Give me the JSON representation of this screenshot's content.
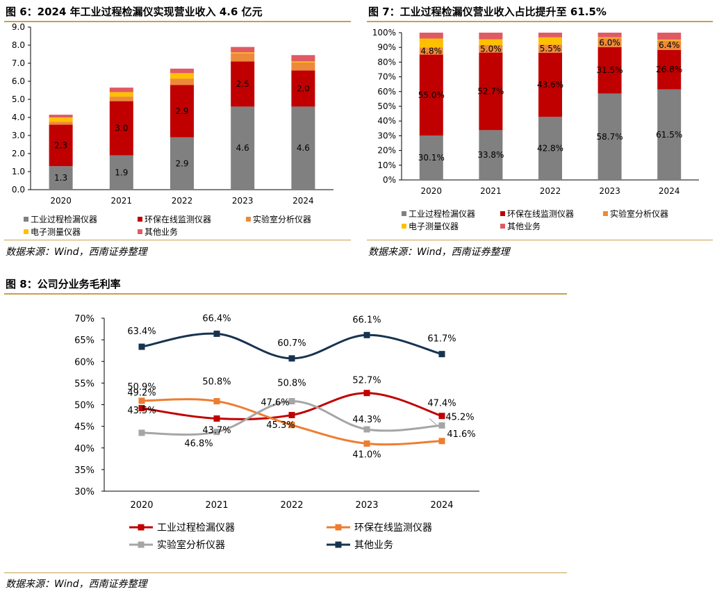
{
  "fig6": {
    "title": "图 6：2024 年工业过程检漏仪实现营业收入 4.6 亿元",
    "source": "数据来源：Wind，西南证券整理",
    "chart_data": {
      "type": "bar",
      "stacked": true,
      "categories": [
        "2020",
        "2021",
        "2022",
        "2023",
        "2024"
      ],
      "ylim": [
        0,
        9
      ],
      "yticks": [
        "0.0",
        "1.0",
        "2.0",
        "3.0",
        "4.0",
        "5.0",
        "6.0",
        "7.0",
        "8.0",
        "9.0"
      ],
      "ytick_values": [
        0,
        1,
        2,
        3,
        4,
        5,
        6,
        7,
        8,
        9
      ],
      "series": [
        {
          "name": "工业过程检漏仪器",
          "color": "#808080",
          "values": [
            1.3,
            1.9,
            2.9,
            4.6,
            4.6
          ],
          "labels": [
            "1.3",
            "1.9",
            "2.9",
            "4.6",
            "4.6"
          ]
        },
        {
          "name": "环保在线监测仪器",
          "color": "#c00000",
          "values": [
            2.3,
            3.0,
            2.9,
            2.5,
            2.0
          ],
          "labels": [
            "2.3",
            "3.0",
            "2.9",
            "2.5",
            "2.0"
          ]
        },
        {
          "name": "实验室分析仪器",
          "color": "#ed8a3a",
          "values": [
            0.15,
            0.25,
            0.35,
            0.45,
            0.45
          ],
          "labels": [
            "",
            "",
            "",
            "",
            ""
          ]
        },
        {
          "name": "电子测量仪器",
          "color": "#ffc000",
          "values": [
            0.25,
            0.25,
            0.3,
            0.05,
            0.05
          ],
          "labels": [
            "",
            "",
            "",
            "",
            ""
          ]
        },
        {
          "name": "其他业务",
          "color": "#e05a63",
          "values": [
            0.15,
            0.25,
            0.25,
            0.3,
            0.35
          ],
          "labels": [
            "",
            "",
            "",
            "",
            ""
          ]
        }
      ],
      "grid": false,
      "legend": "bottom"
    }
  },
  "fig7": {
    "title": "图 7：工业过程检漏仪营业收入占比提升至 61.5%",
    "source": "数据来源：Wind，西南证券整理",
    "chart_data": {
      "type": "bar",
      "stacked": true,
      "categories": [
        "2020",
        "2021",
        "2022",
        "2023",
        "2024"
      ],
      "ylim": [
        0,
        100
      ],
      "yticks": [
        "0%",
        "10%",
        "20%",
        "30%",
        "40%",
        "50%",
        "60%",
        "70%",
        "80%",
        "90%",
        "100%"
      ],
      "ytick_values": [
        0,
        10,
        20,
        30,
        40,
        50,
        60,
        70,
        80,
        90,
        100
      ],
      "series": [
        {
          "name": "工业过程检漏仪器",
          "color": "#808080",
          "values": [
            30.1,
            33.8,
            42.8,
            58.7,
            61.5
          ],
          "labels": [
            "30.1%",
            "33.8%",
            "42.8%",
            "58.7%",
            "61.5%"
          ]
        },
        {
          "name": "环保在线监测仪器",
          "color": "#c00000",
          "values": [
            55.0,
            52.7,
            43.6,
            31.5,
            26.8
          ],
          "labels": [
            "55.0%",
            "52.7%",
            "43.6%",
            "31.5%",
            "26.8%"
          ]
        },
        {
          "name": "实验室分析仪器",
          "color": "#ed8a3a",
          "values": [
            4.8,
            5.0,
            5.5,
            6.0,
            6.4
          ],
          "labels": [
            "4.8%",
            "5.0%",
            "5.5%",
            "6.0%",
            "6.4%"
          ]
        },
        {
          "name": "电子测量仪器",
          "color": "#ffc000",
          "values": [
            6.1,
            4.0,
            4.9,
            0.6,
            0.6
          ],
          "labels": [
            "",
            "",
            "",
            "",
            ""
          ]
        },
        {
          "name": "其他业务",
          "color": "#e05a63",
          "values": [
            4.0,
            4.5,
            3.2,
            3.2,
            4.7
          ],
          "labels": [
            "",
            "",
            "",
            "",
            ""
          ]
        }
      ],
      "grid": false,
      "legend": "bottom"
    }
  },
  "fig8": {
    "title": "图 8：公司分业务毛利率",
    "source": "数据来源：Wind，西南证券整理",
    "chart_data": {
      "type": "line",
      "smooth": true,
      "categories": [
        "2020",
        "2021",
        "2022",
        "2023",
        "2024"
      ],
      "ylim": [
        30,
        70
      ],
      "yticks": [
        "30%",
        "35%",
        "40%",
        "45%",
        "50%",
        "55%",
        "60%",
        "65%",
        "70%"
      ],
      "ytick_values": [
        30,
        35,
        40,
        45,
        50,
        55,
        60,
        65,
        70
      ],
      "series": [
        {
          "name": "工业过程检漏仪器",
          "color": "#c00000",
          "values": [
            49.2,
            46.8,
            47.6,
            52.7,
            47.4
          ],
          "labels": [
            "49.2%",
            "46.8%",
            "47.6%",
            "52.7%",
            "47.4%"
          ]
        },
        {
          "name": "环保在线监测仪器",
          "color": "#ed7d31",
          "values": [
            50.9,
            50.8,
            45.3,
            41.0,
            41.6
          ],
          "labels": [
            "50.9%",
            "50.8%",
            "45.3%",
            "41.0%",
            "41.6%"
          ]
        },
        {
          "name": "实验室分析仪器",
          "color": "#a5a5a5",
          "values": [
            43.5,
            43.7,
            50.8,
            44.3,
            45.2
          ],
          "labels": [
            "43.5%",
            "43.7%",
            "50.8%",
            "44.3%",
            "45.2%"
          ]
        },
        {
          "name": "其他业务",
          "color": "#17334f",
          "values": [
            63.4,
            66.4,
            60.7,
            66.1,
            61.7
          ],
          "labels": [
            "63.4%",
            "66.4%",
            "60.7%",
            "66.1%",
            "61.7%"
          ]
        }
      ],
      "grid": false,
      "legend": "bottom"
    }
  }
}
